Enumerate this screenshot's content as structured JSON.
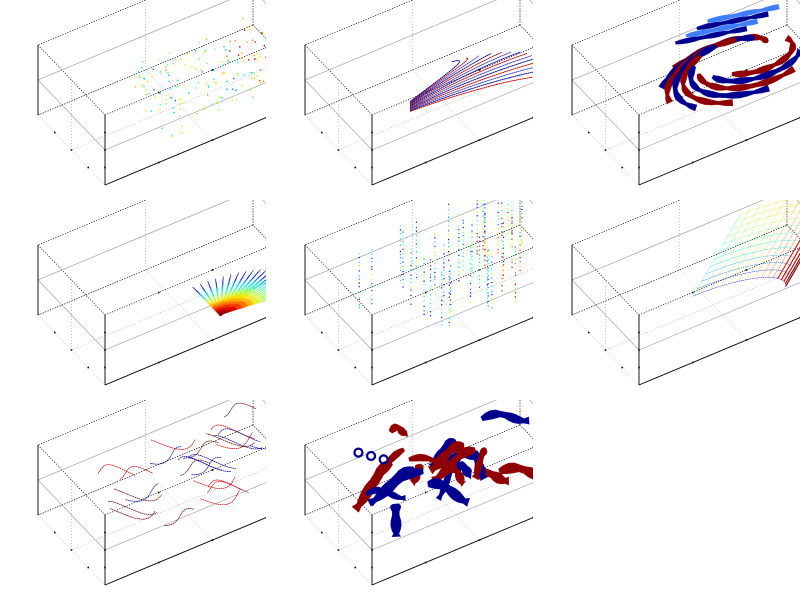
{
  "colors": {
    "background": "#ffffff",
    "box_edges": "#000000",
    "grid": "#8a8a8a",
    "tick": "#000000",
    "colormap": [
      "#00008f",
      "#0000ff",
      "#00bfff",
      "#2fffcf",
      "#bfff3f",
      "#ffdf00",
      "#ff5f00",
      "#df0000",
      "#800000"
    ],
    "ribbon_blue": "#000080",
    "ribbon_red": "#800000"
  },
  "chart_data": [
    {
      "type": "scatter",
      "kind": "3d-vector-field-dots",
      "grid": true,
      "axes_box": true,
      "pattern": "scattered-dots",
      "palette": "colormap",
      "title": "",
      "xlabel": "",
      "ylabel": "",
      "zlabel": ""
    },
    {
      "type": "line",
      "kind": "3d-streamlines",
      "grid": true,
      "axes_box": true,
      "pattern": "fan-curves",
      "palette": "colormap",
      "title": "",
      "xlabel": "",
      "ylabel": "",
      "zlabel": ""
    },
    {
      "type": "area",
      "kind": "3d-streamribbons",
      "grid": true,
      "axes_box": true,
      "pattern": "swirl-ribbons",
      "palette": "colormap",
      "title": "",
      "xlabel": "",
      "ylabel": "",
      "zlabel": ""
    },
    {
      "type": "line",
      "kind": "3d-streamlines-colored",
      "grid": true,
      "axes_box": true,
      "pattern": "radial-fan",
      "palette": "colormap",
      "title": "",
      "xlabel": "",
      "ylabel": "",
      "zlabel": ""
    },
    {
      "type": "scatter",
      "kind": "3d-slice-dots",
      "grid": true,
      "axes_box": true,
      "pattern": "vertical-dots",
      "palette": "colormap",
      "title": "",
      "xlabel": "",
      "ylabel": "",
      "zlabel": ""
    },
    {
      "type": "line",
      "kind": "3d-stream-surface-mesh",
      "grid": true,
      "axes_box": true,
      "pattern": "curved-mesh",
      "palette": "colormap",
      "title": "",
      "xlabel": "",
      "ylabel": "",
      "zlabel": ""
    },
    {
      "type": "line",
      "kind": "3d-streamlines",
      "grid": true,
      "axes_box": true,
      "pattern": "wavy-curves",
      "palette": "bluered",
      "title": "",
      "xlabel": "",
      "ylabel": "",
      "zlabel": ""
    },
    {
      "type": "area",
      "kind": "3d-streamribbons",
      "grid": true,
      "axes_box": true,
      "pattern": "dense-ribbons",
      "palette": "bluered",
      "title": "",
      "xlabel": "",
      "ylabel": "",
      "zlabel": ""
    }
  ]
}
